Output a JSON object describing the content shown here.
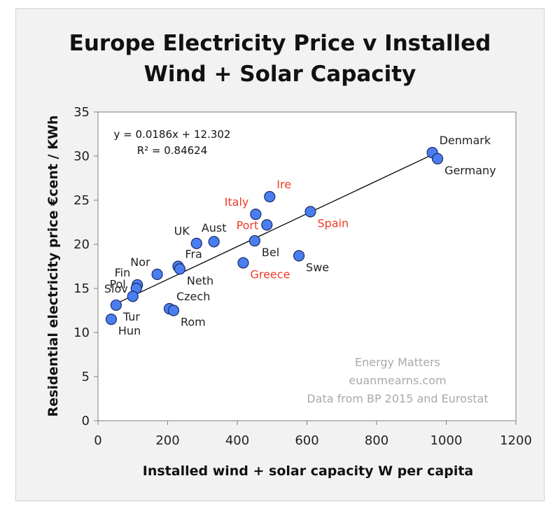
{
  "chart_data": {
    "type": "scatter",
    "title_lines": [
      "Europe Electricity Price v Installed",
      "Wind + Solar Capacity"
    ],
    "xlabel": "Installed wind + solar capacity W per capita",
    "ylabel": "Residential electricity price €cent / KWh",
    "xlim": [
      0,
      1200
    ],
    "ylim": [
      0,
      35
    ],
    "xticks": [
      0,
      200,
      400,
      600,
      800,
      1000,
      1200
    ],
    "yticks": [
      0,
      5,
      10,
      15,
      20,
      25,
      30,
      35
    ],
    "marker_color": "#4a7ef0",
    "highlight_color": "#ee3b24",
    "trendline": {
      "slope": 0.0186,
      "intercept": 12.302,
      "x_range": [
        50,
        965
      ],
      "equation_text": "y = 0.0186x + 12.302",
      "r2_text": "R² = 0.84624"
    },
    "points": [
      {
        "label": "Denmark",
        "x": 960,
        "y": 30.4,
        "highlight": false,
        "anchor": "ne"
      },
      {
        "label": "Germany",
        "x": 975,
        "y": 29.7,
        "highlight": false,
        "anchor": "se"
      },
      {
        "label": "Ire",
        "x": 493,
        "y": 25.4,
        "highlight": true,
        "anchor": "ne"
      },
      {
        "label": "Italy",
        "x": 453,
        "y": 23.4,
        "highlight": true,
        "anchor": "nw"
      },
      {
        "label": "Spain",
        "x": 610,
        "y": 23.7,
        "highlight": true,
        "anchor": "se"
      },
      {
        "label": "Port",
        "x": 485,
        "y": 22.2,
        "highlight": true,
        "anchor": "w"
      },
      {
        "label": "Aust",
        "x": 333,
        "y": 20.3,
        "highlight": false,
        "anchor": "n"
      },
      {
        "label": "UK",
        "x": 283,
        "y": 20.1,
        "highlight": false,
        "anchor": "nw"
      },
      {
        "label": "Bel",
        "x": 450,
        "y": 20.4,
        "highlight": false,
        "anchor": "se"
      },
      {
        "label": "Swe",
        "x": 577,
        "y": 18.7,
        "highlight": false,
        "anchor": "se"
      },
      {
        "label": "Greece",
        "x": 417,
        "y": 17.9,
        "highlight": true,
        "anchor": "se"
      },
      {
        "label": "Fra",
        "x": 230,
        "y": 17.5,
        "highlight": false,
        "anchor": "ne"
      },
      {
        "label": "Neth",
        "x": 235,
        "y": 17.2,
        "highlight": false,
        "anchor": "se"
      },
      {
        "label": "Nor",
        "x": 170,
        "y": 16.6,
        "highlight": false,
        "anchor": "nw"
      },
      {
        "label": "Fin",
        "x": 113,
        "y": 15.4,
        "highlight": false,
        "anchor": "nw"
      },
      {
        "label": "Slov",
        "x": 110,
        "y": 15.0,
        "highlight": false,
        "anchor": "w"
      },
      {
        "label": "Pol",
        "x": 100,
        "y": 14.1,
        "highlight": false,
        "anchor": "nw"
      },
      {
        "label": "Tur",
        "x": 52,
        "y": 13.1,
        "highlight": false,
        "anchor": "se"
      },
      {
        "label": "Hun",
        "x": 38,
        "y": 11.5,
        "highlight": false,
        "anchor": "se"
      },
      {
        "label": "Czech",
        "x": 205,
        "y": 12.7,
        "highlight": false,
        "anchor": "ne"
      },
      {
        "label": "Rom",
        "x": 217,
        "y": 12.5,
        "highlight": false,
        "anchor": "se"
      }
    ],
    "watermark": [
      "Energy Matters",
      "euanmearns.com",
      "Data from BP 2015 and Eurostat"
    ]
  }
}
